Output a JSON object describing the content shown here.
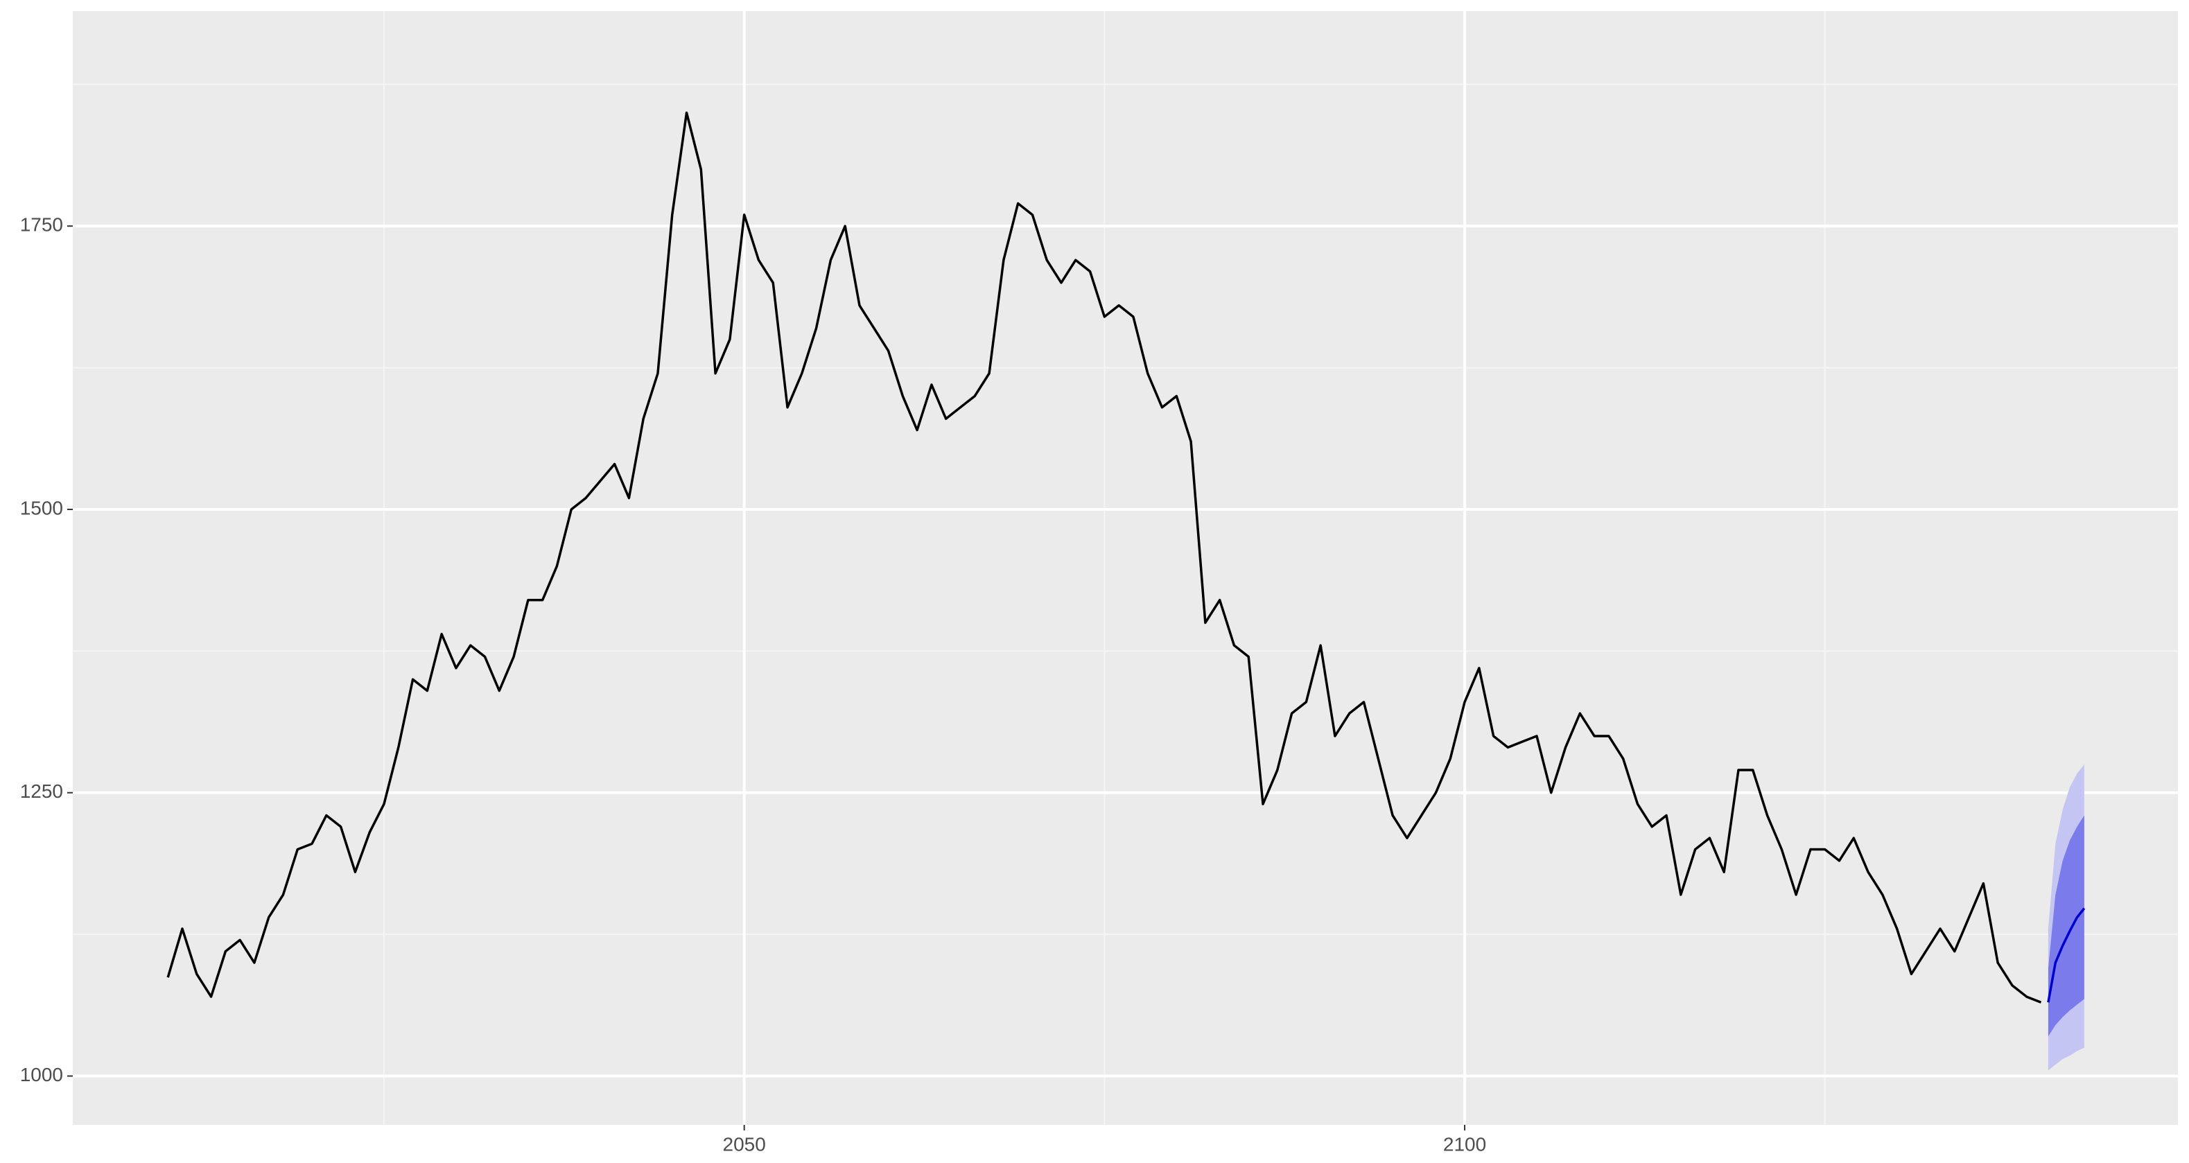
{
  "chart_data": {
    "type": "line",
    "x": [
      2010,
      2011,
      2012,
      2013,
      2014,
      2015,
      2016,
      2017,
      2018,
      2019,
      2020,
      2021,
      2022,
      2023,
      2024,
      2025,
      2026,
      2027,
      2028,
      2029,
      2030,
      2031,
      2032,
      2033,
      2034,
      2035,
      2036,
      2037,
      2038,
      2039,
      2040,
      2041,
      2042,
      2043,
      2044,
      2045,
      2046,
      2047,
      2048,
      2049,
      2050,
      2051,
      2052,
      2053,
      2054,
      2055,
      2056,
      2057,
      2058,
      2059,
      2060,
      2061,
      2062,
      2063,
      2064,
      2065,
      2066,
      2067,
      2068,
      2069,
      2070,
      2071,
      2072,
      2073,
      2074,
      2075,
      2076,
      2077,
      2078,
      2079,
      2080,
      2081,
      2082,
      2083,
      2084,
      2085,
      2086,
      2087,
      2088,
      2089,
      2090,
      2091,
      2092,
      2093,
      2094,
      2095,
      2096,
      2097,
      2098,
      2099,
      2100,
      2101,
      2102,
      2103,
      2104,
      2105,
      2106,
      2107,
      2108,
      2109,
      2110,
      2111,
      2112,
      2113,
      2114,
      2115,
      2116,
      2117,
      2118,
      2119,
      2120,
      2121,
      2122,
      2123,
      2124,
      2125,
      2126,
      2127,
      2128,
      2129,
      2130,
      2131,
      2132,
      2133,
      2134,
      2135,
      2136,
      2137,
      2138,
      2139,
      2140
    ],
    "values": [
      1087,
      1130,
      1090,
      1070,
      1110,
      1120,
      1100,
      1140,
      1160,
      1200,
      1205,
      1230,
      1220,
      1180,
      1215,
      1240,
      1290,
      1350,
      1340,
      1390,
      1360,
      1380,
      1370,
      1340,
      1370,
      1420,
      1420,
      1450,
      1500,
      1510,
      1525,
      1540,
      1510,
      1580,
      1620,
      1760,
      1850,
      1800,
      1620,
      1650,
      1760,
      1720,
      1700,
      1590,
      1620,
      1660,
      1720,
      1750,
      1680,
      1660,
      1640,
      1600,
      1570,
      1610,
      1580,
      1590,
      1600,
      1620,
      1720,
      1770,
      1760,
      1720,
      1700,
      1720,
      1710,
      1670,
      1680,
      1670,
      1620,
      1590,
      1600,
      1560,
      1400,
      1420,
      1380,
      1370,
      1240,
      1270,
      1320,
      1330,
      1380,
      1300,
      1320,
      1330,
      1280,
      1230,
      1210,
      1230,
      1250,
      1280,
      1330,
      1360,
      1300,
      1290,
      1295,
      1300,
      1250,
      1290,
      1320,
      1300,
      1300,
      1280,
      1240,
      1220,
      1230,
      1160,
      1200,
      1210,
      1180,
      1270,
      1270,
      1230,
      1200,
      1160,
      1200,
      1200,
      1190,
      1210,
      1180,
      1160,
      1130,
      1090,
      1110,
      1130,
      1110,
      1140,
      1170,
      1100,
      1080,
      1070,
      1065
    ],
    "color": "#000000",
    "forecast": {
      "x": [
        2140.5,
        2141,
        2141.5,
        2142,
        2142.5,
        2143
      ],
      "mean": [
        1065,
        1100,
        1115,
        1128,
        1140,
        1148
      ],
      "lo80": [
        1035,
        1045,
        1052,
        1058,
        1063,
        1068
      ],
      "hi80": [
        1095,
        1160,
        1190,
        1208,
        1220,
        1230
      ],
      "lo95": [
        1005,
        1010,
        1015,
        1018,
        1022,
        1025
      ],
      "hi95": [
        1130,
        1205,
        1235,
        1255,
        1267,
        1275
      ],
      "color": "#0000cc",
      "color80": "#7b7bec",
      "color95": "#c5c5f3"
    },
    "xlim": [
      2003.4,
      2149.5
    ],
    "ylim": [
      956.9,
      1939.7
    ],
    "xticks": [
      2050,
      2100
    ],
    "yticks": [
      1000,
      1250,
      1500,
      1750
    ],
    "grid": true,
    "minor_grid": true,
    "panel_color": "#ebebeb"
  }
}
